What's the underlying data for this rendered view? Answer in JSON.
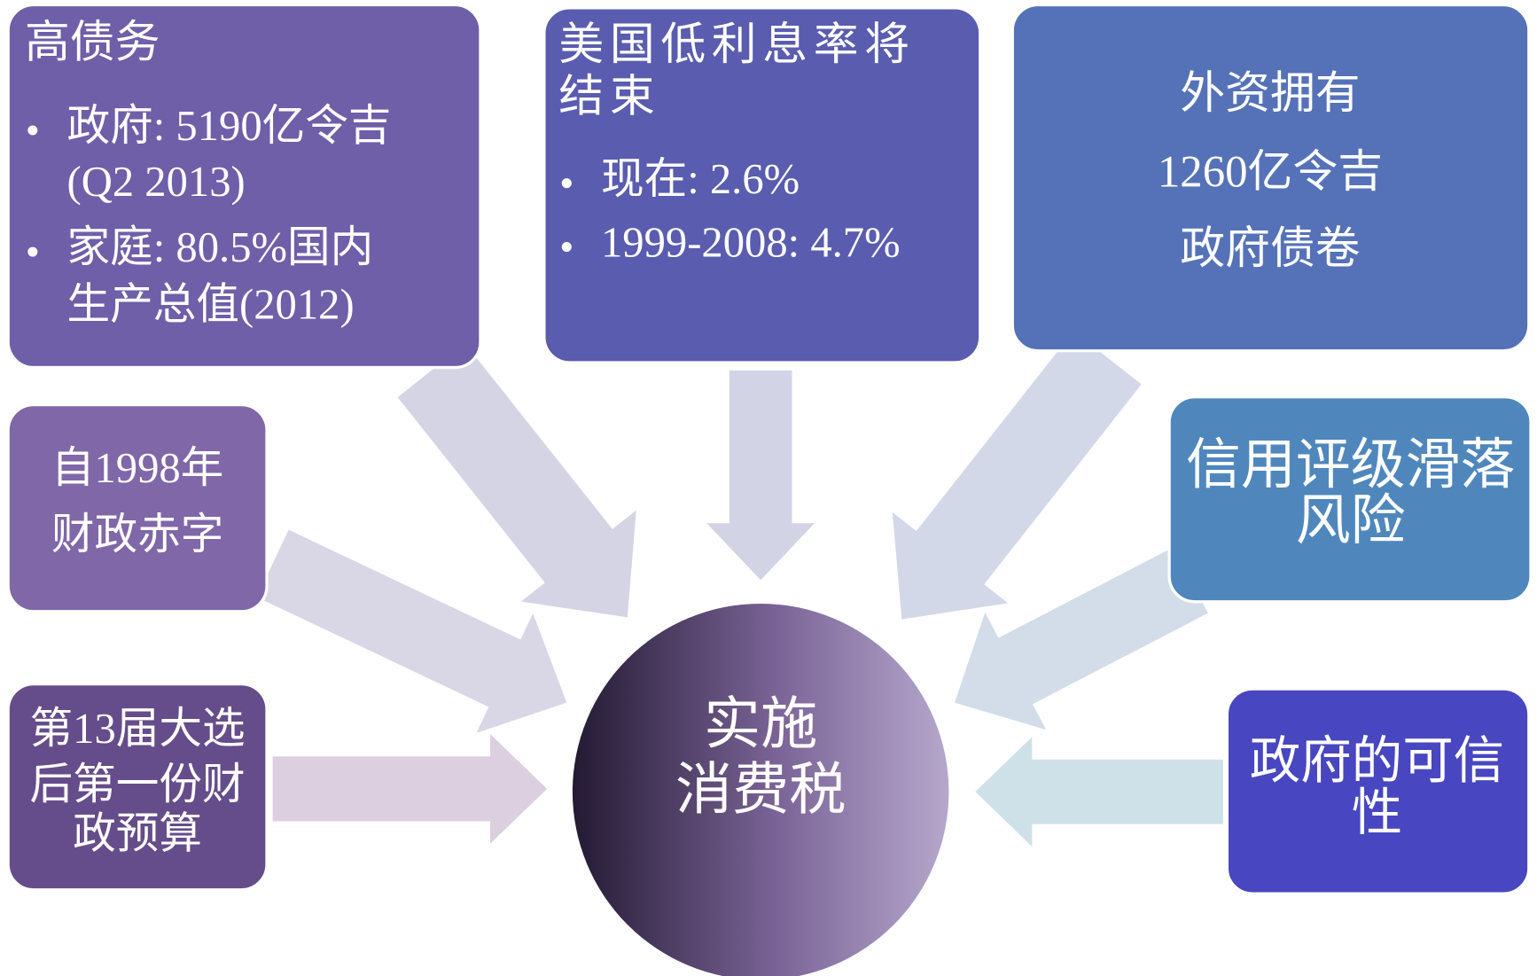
{
  "boxes": [
    {
      "title": [
        "高债务"
      ],
      "bullets": [
        [
          "政府: 5190亿令吉",
          "(Q2 2013)"
        ],
        [
          "家庭: 80.5%国内",
          "生产总值(2012)"
        ]
      ]
    },
    {
      "title": [
        "美国低利息率将",
        "结束"
      ],
      "bullets": [
        [
          "现在: 2.6%"
        ],
        [
          "1999-2008: 4.7%"
        ]
      ]
    },
    {
      "title": [
        "外资拥有",
        "1260亿令吉",
        "政府债卷"
      ]
    },
    {
      "title": [
        "自1998年",
        "财政赤字"
      ]
    },
    {
      "title": [
        "信用评级滑落",
        "风险"
      ]
    },
    {
      "title": [
        "第13届大选",
        "后第一份财",
        "政预算"
      ]
    },
    {
      "title": [
        "政府的可信",
        "性"
      ]
    }
  ],
  "center": {
    "lines": [
      "实施",
      "消费税"
    ]
  }
}
